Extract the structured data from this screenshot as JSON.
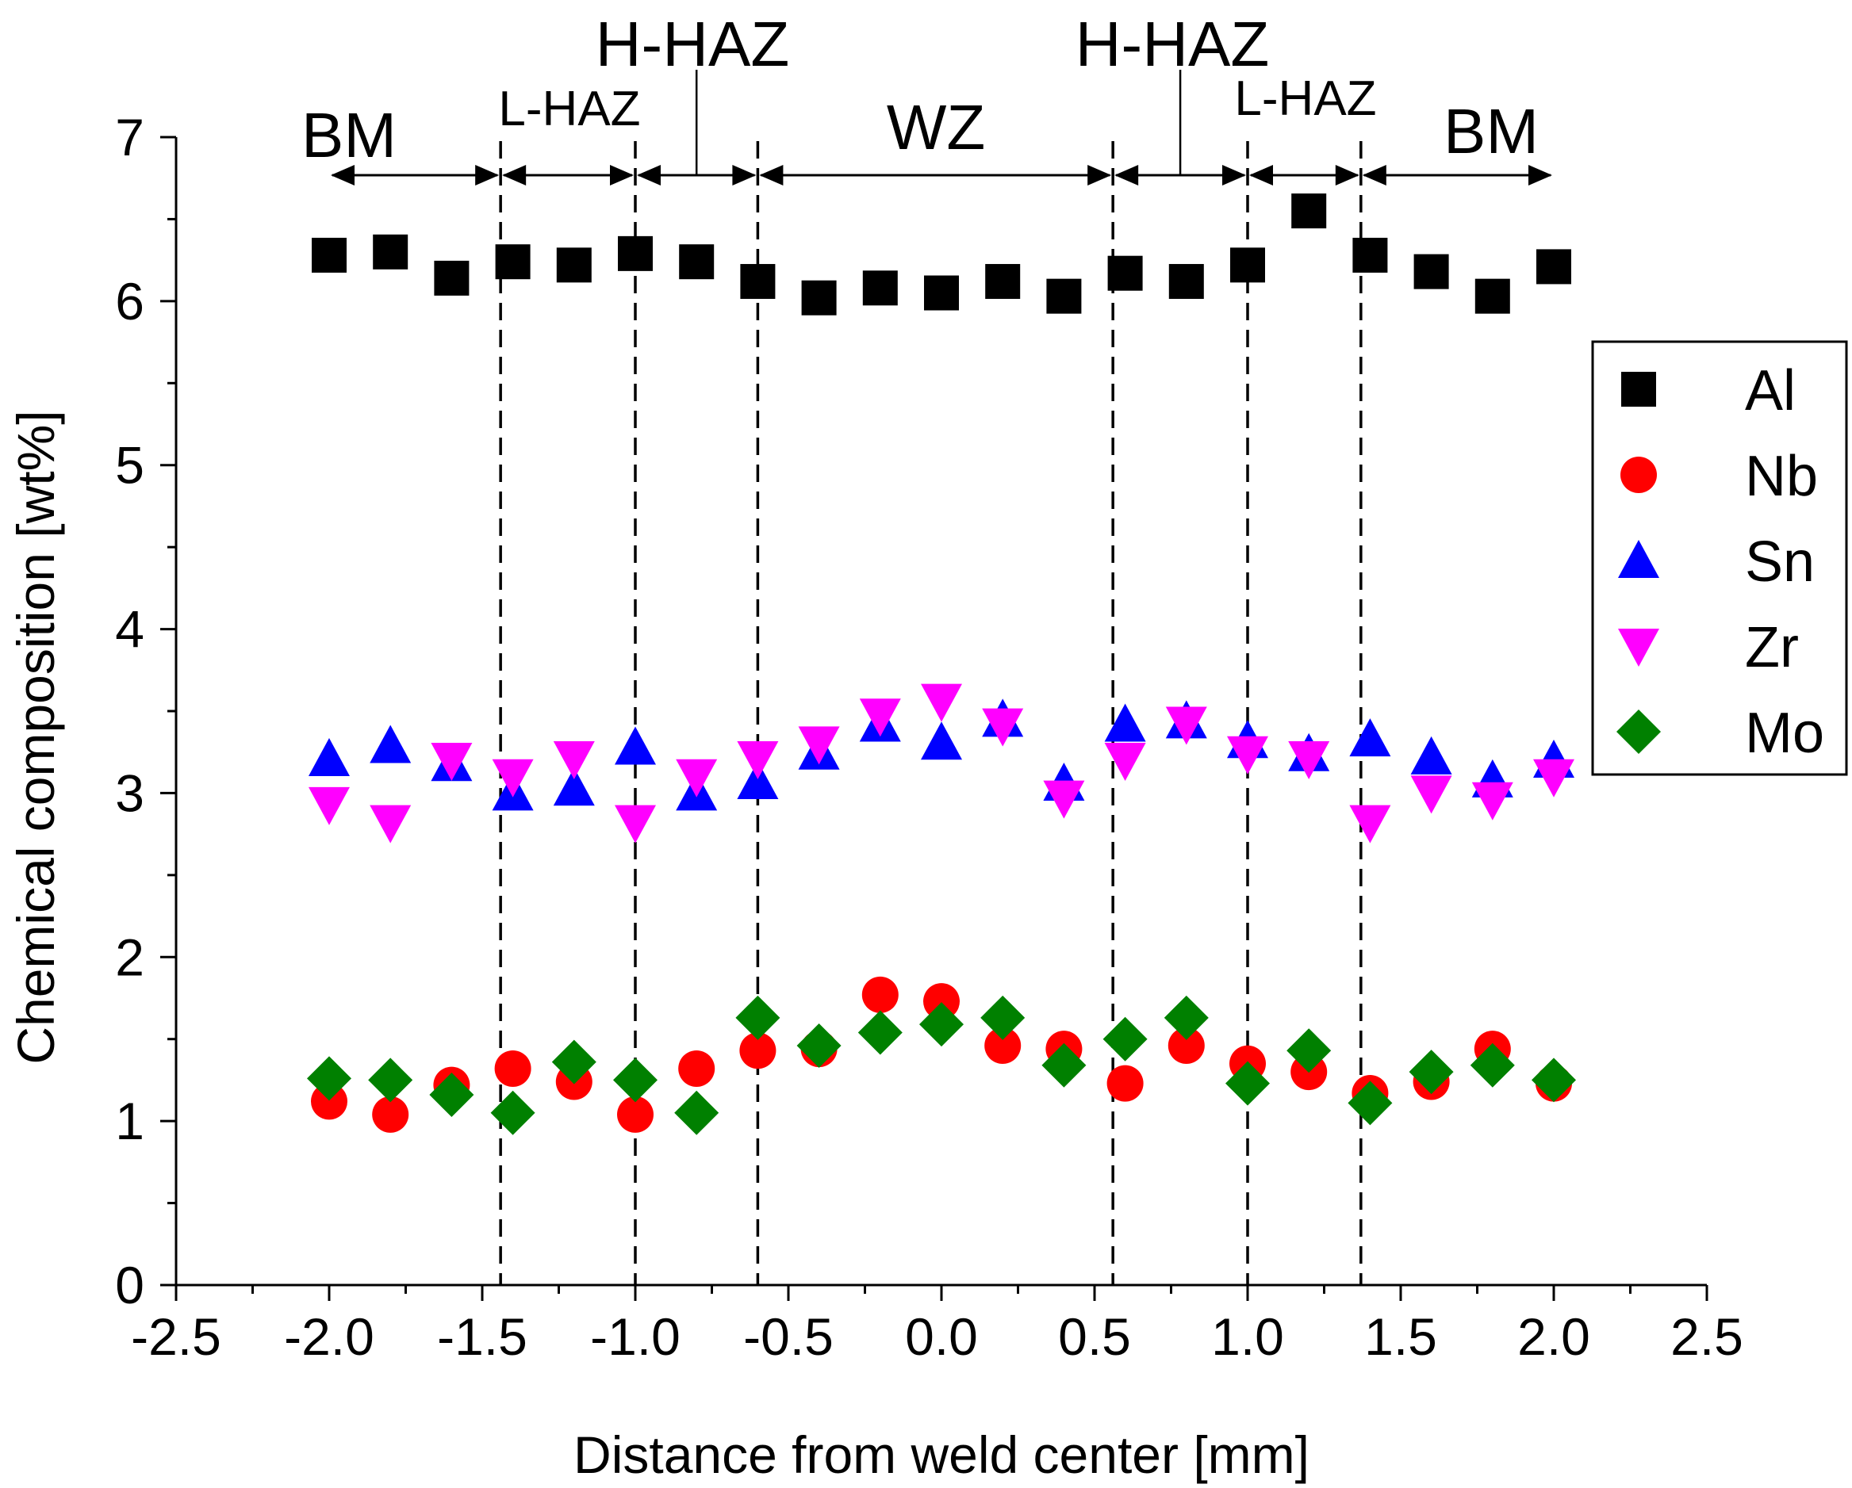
{
  "chart_data": {
    "type": "scatter",
    "xlabel": "Distance from weld center [mm]",
    "ylabel": "Chemical composition [wt%]",
    "xlim": [
      -2.5,
      2.5
    ],
    "ylim": [
      0,
      7
    ],
    "x_ticks": [
      "-2.5",
      "-2.0",
      "-1.5",
      "-1.0",
      "-0.5",
      "0.0",
      "0.5",
      "1.0",
      "1.5",
      "2.0",
      "2.5"
    ],
    "y_ticks": [
      "0",
      "1",
      "2",
      "3",
      "4",
      "5",
      "6",
      "7"
    ],
    "legend_position": "right",
    "zone_boundaries": [
      -1.44,
      -1.0,
      -0.6,
      0.56,
      1.0,
      1.37
    ],
    "zones": [
      {
        "label": "BM",
        "from": -2.0,
        "to": -1.44
      },
      {
        "label": "L-HAZ",
        "from": -1.44,
        "to": -1.0
      },
      {
        "label": "H-HAZ",
        "from": -1.0,
        "to": -0.6
      },
      {
        "label": "WZ",
        "from": -0.6,
        "to": 0.56
      },
      {
        "label": "H-HAZ",
        "from": 0.56,
        "to": 1.0
      },
      {
        "label": "L-HAZ",
        "from": 1.0,
        "to": 1.37
      },
      {
        "label": "BM",
        "from": 1.37,
        "to": 2.0
      }
    ],
    "x": [
      -2.0,
      -1.8,
      -1.6,
      -1.4,
      -1.2,
      -1.0,
      -0.8,
      -0.6,
      -0.4,
      -0.2,
      0.0,
      0.2,
      0.4,
      0.6,
      0.8,
      1.0,
      1.2,
      1.4,
      1.6,
      1.8,
      2.0
    ],
    "series": [
      {
        "name": "Al",
        "marker": "square",
        "color": "#000000",
        "values": [
          6.28,
          6.3,
          6.14,
          6.24,
          6.22,
          6.29,
          6.24,
          6.12,
          6.02,
          6.08,
          6.05,
          6.12,
          6.03,
          6.17,
          6.12,
          6.22,
          6.55,
          6.28,
          6.18,
          6.03,
          6.21
        ]
      },
      {
        "name": "Nb",
        "marker": "circle",
        "color": "#ff0000",
        "values": [
          1.12,
          1.04,
          1.22,
          1.32,
          1.24,
          1.04,
          1.32,
          1.43,
          1.44,
          1.77,
          1.73,
          1.46,
          1.44,
          1.23,
          1.46,
          1.35,
          1.3,
          1.17,
          1.24,
          1.44,
          1.23
        ]
      },
      {
        "name": "Sn",
        "marker": "triangle-up",
        "color": "#0000ff",
        "values": [
          3.21,
          3.29,
          3.18,
          3.0,
          3.03,
          3.28,
          3.0,
          3.07,
          3.25,
          3.42,
          3.31,
          3.45,
          3.06,
          3.42,
          3.44,
          3.32,
          3.24,
          3.33,
          3.22,
          3.08,
          3.2
        ]
      },
      {
        "name": "Zr",
        "marker": "triangle-down",
        "color": "#ff00ff",
        "values": [
          2.93,
          2.82,
          3.2,
          3.1,
          3.21,
          2.82,
          3.1,
          3.21,
          3.3,
          3.47,
          3.56,
          3.41,
          2.97,
          3.2,
          3.42,
          3.24,
          3.21,
          2.82,
          3.0,
          2.96,
          3.1
        ]
      },
      {
        "name": "Mo",
        "marker": "diamond",
        "color": "#008000",
        "values": [
          1.26,
          1.25,
          1.16,
          1.05,
          1.36,
          1.25,
          1.05,
          1.63,
          1.46,
          1.54,
          1.59,
          1.63,
          1.34,
          1.5,
          1.63,
          1.23,
          1.43,
          1.11,
          1.3,
          1.34,
          1.25
        ]
      }
    ]
  }
}
